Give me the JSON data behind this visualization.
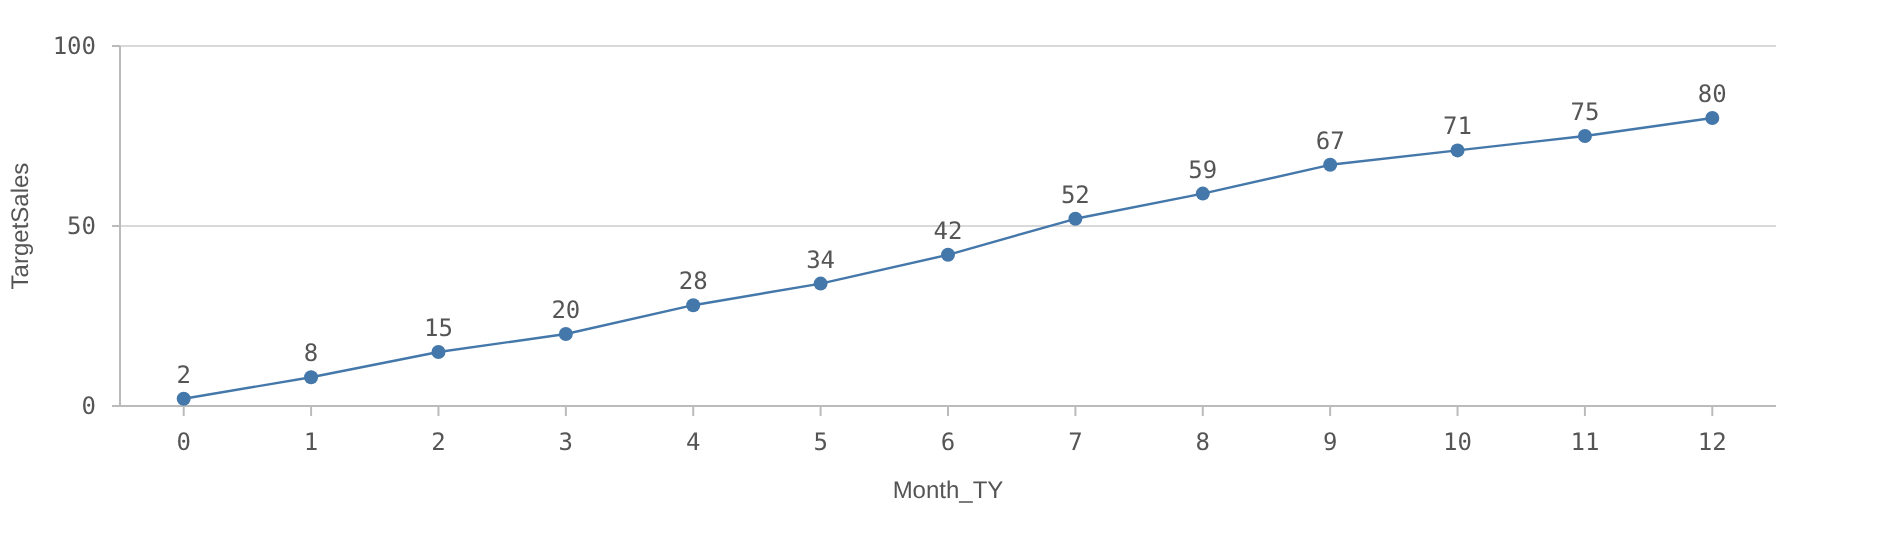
{
  "chart_data": {
    "type": "line",
    "xlabel": "Month_TY",
    "ylabel": "TargetSales",
    "x": [
      0,
      1,
      2,
      3,
      4,
      5,
      6,
      7,
      8,
      9,
      10,
      11,
      12
    ],
    "xlim": [
      -0.5,
      12.5
    ],
    "xticks": [
      0,
      1,
      2,
      3,
      4,
      5,
      6,
      7,
      8,
      9,
      10,
      11,
      12
    ],
    "series": [
      {
        "color": "#4477aa",
        "values": [
          2,
          8,
          15,
          20,
          28,
          34,
          42,
          52,
          59,
          67,
          71,
          75,
          80
        ]
      }
    ],
    "ylim": [
      0,
      100
    ],
    "yticks": [
      0,
      50,
      100
    ],
    "grid": "y",
    "marker": "circle",
    "line_style": "solid",
    "data_labels": true
  }
}
